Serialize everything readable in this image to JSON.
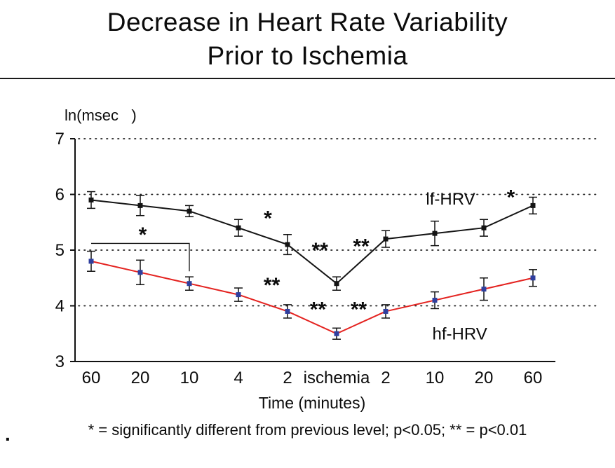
{
  "title": {
    "line1": "Decrease in Heart Rate Variability",
    "line2": "Prior to Ischemia"
  },
  "footnote": "* = significantly different from previous level; p<0.05; ** = p<0.01",
  "footer_dot": ".",
  "chart_data": {
    "type": "line",
    "categories": [
      "60",
      "20",
      "10",
      "4",
      "2",
      "ischemia",
      "2",
      "10",
      "20",
      "60"
    ],
    "xlabel": "Time (minutes)",
    "ylabel": "ln(msec   )",
    "ylim": [
      3,
      7
    ],
    "yticks": [
      3,
      4,
      5,
      6,
      7
    ],
    "grid_y": [
      4,
      5,
      6,
      7
    ],
    "grid_style": "dotted",
    "legend_position": "inline-labels",
    "series": [
      {
        "name": "lf-HRV",
        "line_color": "#141414",
        "marker_color": "#141414",
        "values": [
          5.9,
          5.8,
          5.7,
          5.4,
          5.1,
          4.4,
          5.2,
          5.3,
          5.4,
          5.8
        ],
        "errors": [
          0.15,
          0.18,
          0.1,
          0.15,
          0.18,
          0.12,
          0.15,
          0.22,
          0.15,
          0.15
        ],
        "label_pos": {
          "x": 6.82,
          "y": 5.92
        }
      },
      {
        "name": "hf-HRV",
        "line_color": "#e42320",
        "marker_color": "#2f3f9f",
        "values": [
          4.8,
          4.6,
          4.4,
          4.2,
          3.9,
          3.5,
          3.9,
          4.1,
          4.3,
          4.5
        ],
        "errors": [
          0.18,
          0.22,
          0.12,
          0.12,
          0.12,
          0.1,
          0.12,
          0.15,
          0.2,
          0.15
        ],
        "label_pos": {
          "x": 6.95,
          "y": 3.5
        }
      }
    ],
    "annotations": [
      {
        "text": "*",
        "x": 1.05,
        "y": 5.33
      },
      {
        "text": "*",
        "x": 3.6,
        "y": 5.62
      },
      {
        "text": "**",
        "x": 4.66,
        "y": 5.05
      },
      {
        "text": "**",
        "x": 5.5,
        "y": 5.12
      },
      {
        "text": "**",
        "x": 3.68,
        "y": 4.42
      },
      {
        "text": "**",
        "x": 4.62,
        "y": 3.99
      },
      {
        "text": "**",
        "x": 5.45,
        "y": 3.99
      },
      {
        "text": "*",
        "x": 8.55,
        "y": 6.0
      }
    ],
    "bracket": {
      "x_from": 0,
      "x_to": 2,
      "y": 5.12,
      "drop_to": 4.62
    }
  }
}
